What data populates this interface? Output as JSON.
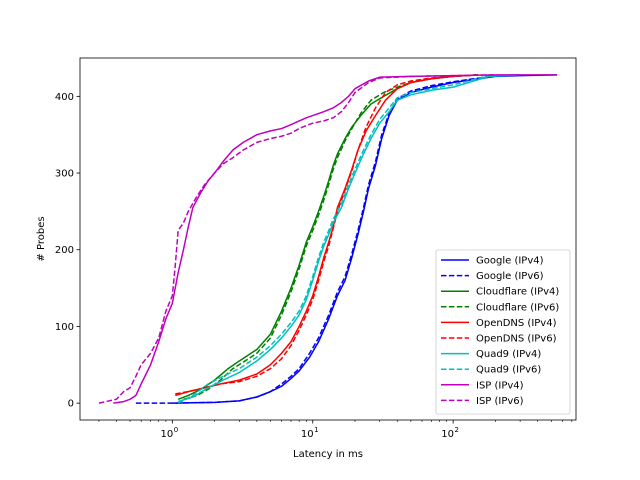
{
  "chart_data": {
    "type": "line",
    "title": "",
    "xlabel": "Latency in ms",
    "ylabel": "# Probes",
    "xscale": "log",
    "xlim": [
      0.22,
      750
    ],
    "ylim": [
      -22,
      450
    ],
    "x_ticks": [
      {
        "value": 1,
        "base": "10",
        "exp": "0"
      },
      {
        "value": 10,
        "base": "10",
        "exp": "1"
      },
      {
        "value": 100,
        "base": "10",
        "exp": "2"
      }
    ],
    "y_ticks": [
      {
        "value": 0,
        "label": "0"
      },
      {
        "value": 100,
        "label": "100"
      },
      {
        "value": 200,
        "label": "200"
      },
      {
        "value": 300,
        "label": "300"
      },
      {
        "value": 400,
        "label": "400"
      }
    ],
    "grid": false,
    "legend_position": "lower-right",
    "series": [
      {
        "name": "Google (IPv4)",
        "color": "#0000ff",
        "dash": false,
        "points": [
          [
            1.0,
            0
          ],
          [
            2.0,
            1
          ],
          [
            3.0,
            3
          ],
          [
            4.0,
            8
          ],
          [
            5.0,
            15
          ],
          [
            6.0,
            22
          ],
          [
            7.0,
            32
          ],
          [
            8.0,
            42
          ],
          [
            9.5,
            60
          ],
          [
            11.0,
            80
          ],
          [
            13.0,
            110
          ],
          [
            15.0,
            140
          ],
          [
            17.0,
            160
          ],
          [
            19.0,
            190
          ],
          [
            21.0,
            220
          ],
          [
            23.0,
            250
          ],
          [
            25.0,
            280
          ],
          [
            28.0,
            310
          ],
          [
            31.0,
            345
          ],
          [
            35.0,
            375
          ],
          [
            40.0,
            395
          ],
          [
            50.0,
            405
          ],
          [
            70.0,
            412
          ],
          [
            100.0,
            418
          ],
          [
            140.0,
            422
          ],
          [
            200.0,
            426
          ],
          [
            300.0,
            427
          ],
          [
            550.0,
            428
          ]
        ]
      },
      {
        "name": "Google (IPv6)",
        "color": "#0000ff",
        "dash": true,
        "points": [
          [
            0.55,
            0
          ],
          [
            1.0,
            0
          ],
          [
            2.0,
            1
          ],
          [
            3.0,
            3
          ],
          [
            4.0,
            8
          ],
          [
            5.0,
            15
          ],
          [
            6.0,
            25
          ],
          [
            7.0,
            35
          ],
          [
            8.0,
            45
          ],
          [
            9.5,
            65
          ],
          [
            11.0,
            85
          ],
          [
            13.0,
            115
          ],
          [
            15.0,
            145
          ],
          [
            17.0,
            165
          ],
          [
            19.0,
            195
          ],
          [
            21.0,
            225
          ],
          [
            23.0,
            255
          ],
          [
            25.0,
            285
          ],
          [
            28.0,
            315
          ],
          [
            31.0,
            350
          ],
          [
            35.0,
            378
          ],
          [
            40.0,
            397
          ],
          [
            50.0,
            407
          ],
          [
            70.0,
            414
          ],
          [
            100.0,
            419
          ],
          [
            140.0,
            423
          ],
          [
            200.0,
            427
          ],
          [
            300.0,
            428
          ]
        ]
      },
      {
        "name": "Cloudflare (IPv4)",
        "color": "#008000",
        "dash": false,
        "points": [
          [
            1.1,
            5
          ],
          [
            1.3,
            10
          ],
          [
            1.6,
            18
          ],
          [
            2.0,
            30
          ],
          [
            2.5,
            45
          ],
          [
            3.0,
            55
          ],
          [
            4.0,
            70
          ],
          [
            5.0,
            90
          ],
          [
            6.0,
            120
          ],
          [
            7.0,
            150
          ],
          [
            8.0,
            180
          ],
          [
            9.0,
            210
          ],
          [
            10.0,
            230
          ],
          [
            11.0,
            250
          ],
          [
            12.0,
            270
          ],
          [
            13.0,
            290
          ],
          [
            14.0,
            310
          ],
          [
            15.0,
            325
          ],
          [
            17.0,
            345
          ],
          [
            19.0,
            360
          ],
          [
            22.0,
            375
          ],
          [
            26.0,
            390
          ],
          [
            32.0,
            400
          ],
          [
            40.0,
            410
          ],
          [
            50.0,
            418
          ],
          [
            70.0,
            423
          ],
          [
            100.0,
            426
          ],
          [
            150.0,
            428
          ]
        ]
      },
      {
        "name": "Cloudflare (IPv6)",
        "color": "#008000",
        "dash": true,
        "points": [
          [
            1.2,
            5
          ],
          [
            1.5,
            10
          ],
          [
            1.8,
            18
          ],
          [
            2.2,
            30
          ],
          [
            2.7,
            45
          ],
          [
            3.3,
            55
          ],
          [
            4.0,
            65
          ],
          [
            5.0,
            85
          ],
          [
            6.0,
            115
          ],
          [
            7.0,
            145
          ],
          [
            8.0,
            175
          ],
          [
            9.0,
            205
          ],
          [
            10.0,
            225
          ],
          [
            11.0,
            245
          ],
          [
            12.0,
            265
          ],
          [
            13.0,
            285
          ],
          [
            14.0,
            305
          ],
          [
            15.0,
            320
          ],
          [
            17.0,
            342
          ],
          [
            19.0,
            358
          ],
          [
            22.0,
            378
          ],
          [
            26.0,
            395
          ],
          [
            32.0,
            405
          ],
          [
            40.0,
            412
          ],
          [
            50.0,
            418
          ],
          [
            70.0,
            423
          ],
          [
            100.0,
            426
          ],
          [
            150.0,
            428
          ]
        ]
      },
      {
        "name": "OpenDNS (IPv4)",
        "color": "#ff0000",
        "dash": false,
        "points": [
          [
            1.05,
            10
          ],
          [
            1.3,
            15
          ],
          [
            1.7,
            20
          ],
          [
            2.2,
            25
          ],
          [
            3.0,
            30
          ],
          [
            4.0,
            38
          ],
          [
            5.0,
            50
          ],
          [
            6.0,
            65
          ],
          [
            7.0,
            80
          ],
          [
            8.0,
            100
          ],
          [
            9.0,
            120
          ],
          [
            10.0,
            140
          ],
          [
            11.0,
            165
          ],
          [
            12.0,
            190
          ],
          [
            13.0,
            210
          ],
          [
            14.0,
            230
          ],
          [
            15.0,
            255
          ],
          [
            17.0,
            280
          ],
          [
            19.0,
            305
          ],
          [
            21.0,
            330
          ],
          [
            24.0,
            355
          ],
          [
            28.0,
            375
          ],
          [
            33.0,
            395
          ],
          [
            40.0,
            410
          ],
          [
            50.0,
            418
          ],
          [
            70.0,
            423
          ],
          [
            100.0,
            426
          ],
          [
            150.0,
            428
          ]
        ]
      },
      {
        "name": "OpenDNS (IPv6)",
        "color": "#ff0000",
        "dash": true,
        "points": [
          [
            1.05,
            12
          ],
          [
            1.3,
            15
          ],
          [
            1.7,
            20
          ],
          [
            2.2,
            25
          ],
          [
            3.0,
            28
          ],
          [
            4.0,
            35
          ],
          [
            5.0,
            45
          ],
          [
            6.0,
            58
          ],
          [
            7.0,
            75
          ],
          [
            8.0,
            95
          ],
          [
            9.0,
            115
          ],
          [
            10.0,
            135
          ],
          [
            11.0,
            160
          ],
          [
            12.0,
            185
          ],
          [
            13.0,
            205
          ],
          [
            14.0,
            228
          ],
          [
            15.0,
            250
          ],
          [
            17.0,
            278
          ],
          [
            19.0,
            303
          ],
          [
            21.0,
            330
          ],
          [
            24.0,
            360
          ],
          [
            28.0,
            385
          ],
          [
            33.0,
            405
          ],
          [
            40.0,
            415
          ],
          [
            50.0,
            420
          ],
          [
            70.0,
            424
          ],
          [
            100.0,
            426
          ],
          [
            150.0,
            428
          ]
        ]
      },
      {
        "name": "Quad9 (IPv4)",
        "color": "#00bfbf",
        "dash": false,
        "points": [
          [
            1.1,
            2
          ],
          [
            1.4,
            8
          ],
          [
            1.8,
            20
          ],
          [
            2.3,
            30
          ],
          [
            3.0,
            40
          ],
          [
            4.0,
            55
          ],
          [
            5.0,
            70
          ],
          [
            6.0,
            85
          ],
          [
            7.0,
            100
          ],
          [
            8.0,
            115
          ],
          [
            9.0,
            135
          ],
          [
            10.0,
            160
          ],
          [
            11.0,
            185
          ],
          [
            12.0,
            205
          ],
          [
            13.0,
            220
          ],
          [
            14.0,
            235
          ],
          [
            16.0,
            255
          ],
          [
            18.0,
            280
          ],
          [
            20.0,
            300
          ],
          [
            23.0,
            325
          ],
          [
            26.0,
            345
          ],
          [
            30.0,
            365
          ],
          [
            35.0,
            380
          ],
          [
            40.0,
            395
          ],
          [
            50.0,
            402
          ],
          [
            70.0,
            408
          ],
          [
            100.0,
            412
          ],
          [
            140.0,
            420
          ],
          [
            180.0,
            426
          ],
          [
            300.0,
            428
          ]
        ]
      },
      {
        "name": "Quad9 (IPv6)",
        "color": "#00bfbf",
        "dash": true,
        "points": [
          [
            1.1,
            0
          ],
          [
            1.4,
            10
          ],
          [
            1.8,
            25
          ],
          [
            2.3,
            35
          ],
          [
            3.0,
            45
          ],
          [
            4.0,
            60
          ],
          [
            5.0,
            75
          ],
          [
            6.0,
            90
          ],
          [
            7.0,
            105
          ],
          [
            8.0,
            120
          ],
          [
            9.0,
            140
          ],
          [
            10.0,
            165
          ],
          [
            11.0,
            190
          ],
          [
            12.0,
            210
          ],
          [
            13.0,
            225
          ],
          [
            14.0,
            240
          ],
          [
            16.0,
            260
          ],
          [
            18.0,
            285
          ],
          [
            20.0,
            305
          ],
          [
            23.0,
            330
          ],
          [
            26.0,
            350
          ],
          [
            30.0,
            370
          ],
          [
            35.0,
            385
          ],
          [
            40.0,
            398
          ],
          [
            50.0,
            405
          ],
          [
            70.0,
            410
          ],
          [
            100.0,
            415
          ],
          [
            140.0,
            422
          ],
          [
            180.0,
            427
          ],
          [
            300.0,
            428
          ]
        ]
      },
      {
        "name": "ISP (IPv4)",
        "color": "#bf00bf",
        "dash": false,
        "points": [
          [
            0.38,
            0
          ],
          [
            0.45,
            2
          ],
          [
            0.5,
            5
          ],
          [
            0.55,
            10
          ],
          [
            0.6,
            25
          ],
          [
            0.7,
            50
          ],
          [
            0.8,
            80
          ],
          [
            0.9,
            110
          ],
          [
            1.0,
            130
          ],
          [
            1.1,
            170
          ],
          [
            1.2,
            200
          ],
          [
            1.3,
            230
          ],
          [
            1.4,
            255
          ],
          [
            1.6,
            275
          ],
          [
            1.8,
            290
          ],
          [
            2.0,
            300
          ],
          [
            2.3,
            315
          ],
          [
            2.7,
            330
          ],
          [
            3.2,
            340
          ],
          [
            4.0,
            350
          ],
          [
            5.0,
            355
          ],
          [
            6.0,
            358
          ],
          [
            7.0,
            363
          ],
          [
            8.0,
            368
          ],
          [
            9.0,
            372
          ],
          [
            10.0,
            375
          ],
          [
            12.0,
            380
          ],
          [
            14.0,
            385
          ],
          [
            16.0,
            392
          ],
          [
            18.0,
            400
          ],
          [
            20.0,
            410
          ],
          [
            25.0,
            420
          ],
          [
            30.0,
            425
          ],
          [
            50.0,
            426
          ],
          [
            100.0,
            427
          ],
          [
            200.0,
            428
          ],
          [
            550.0,
            428
          ]
        ]
      },
      {
        "name": "ISP (IPv6)",
        "color": "#bf00bf",
        "dash": true,
        "points": [
          [
            0.3,
            0
          ],
          [
            0.4,
            5
          ],
          [
            0.45,
            15
          ],
          [
            0.5,
            20
          ],
          [
            0.55,
            35
          ],
          [
            0.6,
            50
          ],
          [
            0.7,
            65
          ],
          [
            0.8,
            85
          ],
          [
            0.9,
            120
          ],
          [
            1.0,
            140
          ],
          [
            1.05,
            180
          ],
          [
            1.1,
            225
          ],
          [
            1.2,
            235
          ],
          [
            1.3,
            250
          ],
          [
            1.5,
            270
          ],
          [
            1.7,
            285
          ],
          [
            2.0,
            300
          ],
          [
            2.3,
            312
          ],
          [
            2.7,
            320
          ],
          [
            3.2,
            330
          ],
          [
            4.0,
            340
          ],
          [
            5.0,
            345
          ],
          [
            6.0,
            348
          ],
          [
            7.0,
            352
          ],
          [
            8.0,
            358
          ],
          [
            9.0,
            362
          ],
          [
            10.0,
            365
          ],
          [
            12.0,
            368
          ],
          [
            14.0,
            372
          ],
          [
            16.0,
            380
          ],
          [
            18.0,
            392
          ],
          [
            20.0,
            405
          ],
          [
            25.0,
            418
          ],
          [
            30.0,
            424
          ],
          [
            50.0,
            426
          ],
          [
            100.0,
            427
          ],
          [
            200.0,
            428
          ]
        ]
      }
    ]
  }
}
